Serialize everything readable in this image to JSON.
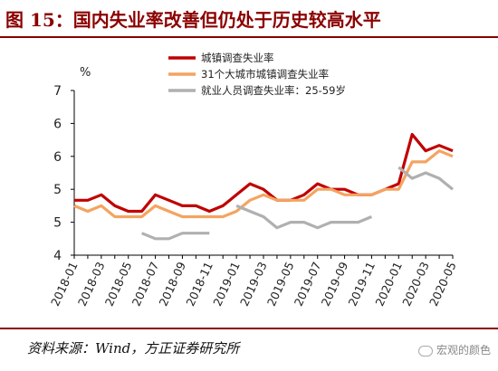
{
  "title": "图 15：国内失业率改善但仍处于历史较高水平",
  "source": "资料来源：Wind，方正证券研究所",
  "watermark": "宏观的颜色",
  "chart_data": {
    "type": "line",
    "ylabel": "%",
    "ylim": [
      4,
      7
    ],
    "yticks": [
      "4",
      "5",
      "5",
      "6",
      "6",
      "7"
    ],
    "legend_position": "top",
    "grid": false,
    "x": [
      "2018-01",
      "2018-02",
      "2018-03",
      "2018-04",
      "2018-05",
      "2018-06",
      "2018-07",
      "2018-08",
      "2018-09",
      "2018-10",
      "2018-11",
      "2018-12",
      "2019-01",
      "2019-02",
      "2019-03",
      "2019-04",
      "2019-05",
      "2019-06",
      "2019-07",
      "2019-08",
      "2019-09",
      "2019-10",
      "2019-11",
      "2019-12",
      "2020-01",
      "2020-02",
      "2020-03",
      "2020-04",
      "2020-05"
    ],
    "xtick_labels": [
      "2018-01",
      "2018-03",
      "2018-05",
      "2018-07",
      "2018-09",
      "2018-11",
      "2019-01",
      "2019-03",
      "2019-05",
      "2019-07",
      "2019-09",
      "2019-11",
      "2020-01",
      "2020-03",
      "2020-05"
    ],
    "series": [
      {
        "name": "城镇调查失业率",
        "color": "#c00000",
        "values": [
          5.0,
          5.0,
          5.1,
          4.9,
          4.8,
          4.8,
          5.1,
          5.0,
          4.9,
          4.9,
          4.8,
          4.9,
          5.1,
          5.3,
          5.2,
          5.0,
          5.0,
          5.1,
          5.3,
          5.2,
          5.2,
          5.1,
          5.1,
          5.2,
          5.3,
          6.2,
          5.9,
          6.0,
          5.9
        ]
      },
      {
        "name": "31个大城市城镇调查失业率",
        "color": "#f4a460",
        "values": [
          4.9,
          4.8,
          4.9,
          4.7,
          4.7,
          4.7,
          4.9,
          4.8,
          4.7,
          4.7,
          4.7,
          4.7,
          4.8,
          5.0,
          5.1,
          5.0,
          5.0,
          5.0,
          5.2,
          5.2,
          5.1,
          5.1,
          5.1,
          5.2,
          5.2,
          5.7,
          5.7,
          5.9,
          5.8
        ]
      },
      {
        "name": "就业人员调查失业率：25-59岁",
        "color": "#b0b0b0",
        "values": [
          null,
          null,
          null,
          null,
          null,
          4.4,
          4.3,
          4.3,
          4.4,
          4.4,
          4.4,
          null,
          4.9,
          4.8,
          4.7,
          4.5,
          4.6,
          4.6,
          4.5,
          4.6,
          4.6,
          4.6,
          4.7,
          null,
          5.6,
          5.4,
          5.5,
          5.4,
          5.2
        ]
      }
    ]
  }
}
